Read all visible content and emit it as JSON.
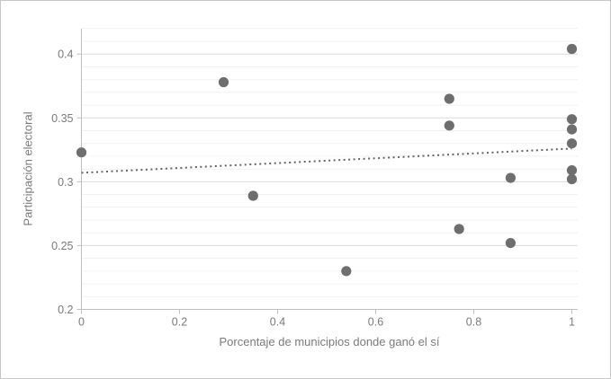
{
  "figure": {
    "background": "#ffffff",
    "border_color": "#c6c6c6"
  },
  "chart_data": {
    "type": "scatter",
    "title": "",
    "xlabel": "Porcentaje de municipios donde ganó el sí",
    "ylabel": "Participación electoral",
    "xlim": [
      0,
      1
    ],
    "ylim": [
      0.2,
      0.42
    ],
    "x_ticks": [
      0,
      0.2,
      0.4,
      0.6,
      0.8,
      1
    ],
    "x_tick_labels": [
      "0",
      "0.2",
      "0.4",
      "0.6",
      "0.8",
      "1"
    ],
    "y_ticks": [
      0.2,
      0.25,
      0.3,
      0.35,
      0.4
    ],
    "y_tick_labels": [
      "0.2",
      "0.25",
      "0.3",
      "0.35",
      "0.4"
    ],
    "grid": "horizontal-only",
    "minor_grid_step": 0.01,
    "major_grid_step": 0.05,
    "legend": "none",
    "points": [
      {
        "x": 0.0,
        "y": 0.323
      },
      {
        "x": 0.29,
        "y": 0.378
      },
      {
        "x": 0.35,
        "y": 0.289
      },
      {
        "x": 0.54,
        "y": 0.23
      },
      {
        "x": 0.75,
        "y": 0.365
      },
      {
        "x": 0.75,
        "y": 0.344
      },
      {
        "x": 0.77,
        "y": 0.263
      },
      {
        "x": 0.875,
        "y": 0.303
      },
      {
        "x": 0.875,
        "y": 0.252
      },
      {
        "x": 1.0,
        "y": 0.404
      },
      {
        "x": 1.0,
        "y": 0.349
      },
      {
        "x": 1.0,
        "y": 0.341
      },
      {
        "x": 1.0,
        "y": 0.33
      },
      {
        "x": 1.0,
        "y": 0.309
      },
      {
        "x": 1.0,
        "y": 0.302
      }
    ],
    "trendline": {
      "style": "dotted",
      "x1": 0.0,
      "y1": 0.307,
      "x2": 1.0,
      "y2": 0.326
    },
    "colors": {
      "point": "#6e6e6e",
      "trend": "#646464",
      "axis": "#bfbfbf",
      "grid_minor": "#f1f1f1",
      "grid_major": "#dcdcdc",
      "text": "#7a7a7a"
    }
  }
}
